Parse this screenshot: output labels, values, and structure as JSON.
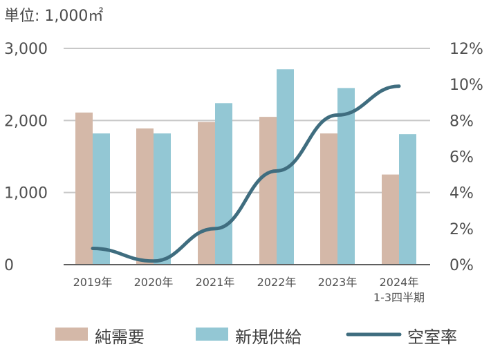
{
  "chart_data": {
    "type": "bar",
    "unit_label": "単位: 1,000㎡",
    "categories": [
      "2019年",
      "2020年",
      "2021年",
      "2022年",
      "2023年",
      "2024年\n1-3四半期"
    ],
    "left_axis": {
      "ylim": [
        0,
        3000
      ],
      "ticks": [
        0,
        1000,
        2000,
        3000
      ],
      "tick_labels": [
        "0",
        "1,000",
        "2,000",
        "3,000"
      ]
    },
    "right_axis": {
      "ylim": [
        0,
        12
      ],
      "ticks": [
        0,
        2,
        4,
        6,
        8,
        10,
        12
      ],
      "tick_labels": [
        "0%",
        "2%",
        "4%",
        "6%",
        "8%",
        "10%",
        "12%"
      ]
    },
    "series": [
      {
        "name": "純需要",
        "type": "bar",
        "axis": "left",
        "color": "#d4b8a8",
        "values": [
          2110,
          1890,
          1980,
          2050,
          1820,
          1250
        ]
      },
      {
        "name": "新規供給",
        "type": "bar",
        "axis": "left",
        "color": "#93c7d4",
        "values": [
          1820,
          1820,
          2240,
          2710,
          2450,
          1810
        ]
      },
      {
        "name": "空室率",
        "type": "line",
        "axis": "right",
        "color": "#3f6d7f",
        "values": [
          0.9,
          0.2,
          2.0,
          5.2,
          8.3,
          9.9
        ]
      }
    ],
    "grid": true,
    "legend": {
      "position": "bottom",
      "items": [
        "純需要",
        "新規供給",
        "空室率"
      ]
    }
  }
}
